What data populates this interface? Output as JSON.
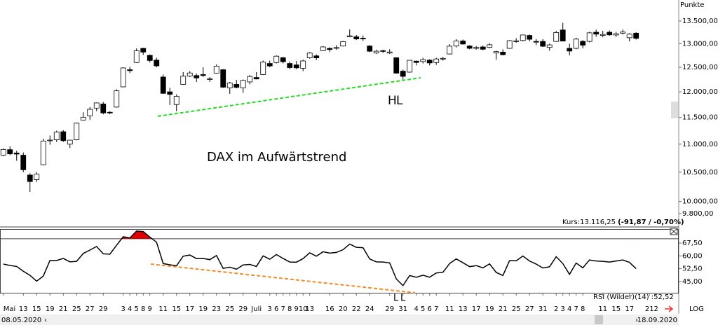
{
  "chart_data": [
    {
      "type": "candlestick",
      "axis_label": "Punkte",
      "annotation": "DAX im Aufwärtstrend",
      "markers": [
        "H",
        "L"
      ],
      "marker_colors": [
        "#1aa33a",
        "#000000"
      ],
      "quote": "Kurs:13.116,25",
      "quote_change": "(-91,87 / -0,70%)",
      "scale_label": "LOG",
      "log_scale": true,
      "up_color": "#ffffff",
      "down_color": "#000000",
      "ylim": [
        9608,
        13980
      ],
      "yticks": [
        {
          "value": 13500,
          "label": "13.500,00"
        },
        {
          "value": 13000,
          "label": "13.000,00"
        },
        {
          "value": 12500,
          "label": "12.500,00"
        },
        {
          "value": 12000,
          "label": "12.000,00"
        },
        {
          "value": 11500,
          "label": "11.500,00"
        },
        {
          "value": 11000,
          "label": "11.000,00"
        },
        {
          "value": 10500,
          "label": "10.500,00"
        },
        {
          "value": 10000,
          "label": "10.000,00"
        },
        {
          "value": 9800,
          "label": "9.800,00"
        }
      ],
      "open": [
        10800,
        10900,
        10840,
        10800,
        10450,
        10370,
        10630,
        11070,
        11080,
        11230,
        11000,
        11080,
        11450,
        11530,
        11680,
        11760,
        11600,
        11700,
        12100,
        12450,
        12600,
        12900,
        12750,
        12650,
        12300,
        12000,
        11750,
        12150,
        12320,
        12330,
        12350,
        12250,
        12380,
        12450,
        12080,
        12150,
        12080,
        12200,
        12290,
        12350,
        12580,
        12600,
        12700,
        12580,
        12550,
        12480,
        12700,
        12740,
        12850,
        12900,
        12900,
        12950,
        13150,
        13150,
        13120,
        12950,
        12800,
        12850,
        12800,
        12700,
        12420,
        12400,
        12630,
        12620,
        12650,
        12600,
        12680,
        12780,
        12950,
        13060,
        12950,
        12900,
        12930,
        12920,
        12800,
        12820,
        12900,
        13060,
        13070,
        13180,
        13050,
        13050,
        12920,
        13050,
        13300,
        12900,
        12900,
        13050,
        13050,
        13250,
        13180,
        13250,
        13190,
        13230,
        13130,
        13230
      ],
      "high": [
        10920,
        10960,
        10880,
        10850,
        10480,
        10500,
        11100,
        11160,
        11250,
        11260,
        11080,
        11400,
        11600,
        11700,
        11790,
        11800,
        11620,
        12050,
        12500,
        12510,
        12900,
        12910,
        12770,
        12700,
        12350,
        12080,
        11950,
        12400,
        12420,
        12370,
        12500,
        12300,
        12560,
        12460,
        12200,
        12240,
        12250,
        12340,
        12400,
        12640,
        12640,
        12750,
        12720,
        12620,
        12630,
        12660,
        12820,
        12770,
        12950,
        12920,
        12970,
        13060,
        13310,
        13190,
        13180,
        12970,
        12870,
        12870,
        12880,
        12710,
        12450,
        12650,
        12640,
        12700,
        12670,
        12700,
        12720,
        12990,
        13100,
        13090,
        12970,
        12950,
        12960,
        13010,
        12850,
        12880,
        13080,
        13120,
        13200,
        13200,
        13100,
        13100,
        13000,
        13280,
        13460,
        13000,
        13130,
        13080,
        13260,
        13310,
        13280,
        13290,
        13260,
        13310,
        13230,
        13250
      ],
      "low": [
        10780,
        10800,
        10700,
        10500,
        10160,
        10330,
        10620,
        10990,
        11040,
        11040,
        10930,
        11070,
        11440,
        11450,
        11620,
        11560,
        11560,
        11690,
        12090,
        12380,
        12590,
        12760,
        12600,
        12500,
        11960,
        11740,
        11620,
        12140,
        12300,
        12200,
        12300,
        12200,
        12370,
        12080,
        11960,
        12070,
        11980,
        12150,
        12250,
        12340,
        12500,
        12580,
        12580,
        12460,
        12460,
        12420,
        12680,
        12650,
        12840,
        12820,
        12870,
        12940,
        13140,
        13080,
        13060,
        12820,
        12780,
        12800,
        12780,
        12370,
        12250,
        12390,
        12540,
        12580,
        12540,
        12550,
        12640,
        12770,
        12920,
        12980,
        12880,
        12870,
        12860,
        12900,
        12660,
        12750,
        12890,
        13020,
        13050,
        13050,
        12970,
        12930,
        12850,
        13040,
        13050,
        12750,
        12880,
        12900,
        13030,
        13150,
        13140,
        13170,
        13150,
        13200,
        13050,
        13090
      ],
      "close": [
        10904,
        10824,
        10820,
        10542,
        10337,
        10465,
        11058,
        11075,
        11223,
        11065,
        11074,
        11391,
        11504,
        11657,
        11781,
        11587,
        11586,
        12021,
        12487,
        12431,
        12848,
        12820,
        12642,
        12530,
        11970,
        11949,
        11911,
        12316,
        12382,
        12281,
        12331,
        12262,
        12523,
        12093,
        12177,
        12089,
        12232,
        12311,
        12260,
        12608,
        12528,
        12733,
        12616,
        12494,
        12489,
        12633,
        12799,
        12697,
        12931,
        12875,
        12919,
        13046,
        13171,
        13104,
        13103,
        12838,
        12839,
        12835,
        12822,
        12379,
        12313,
        12647,
        12601,
        12660,
        12591,
        12674,
        12687,
        12947,
        13058,
        12993,
        12901,
        12920,
        12881,
        12977,
        12830,
        12764,
        13066,
        13062,
        13190,
        13096,
        13033,
        12945,
        12974,
        13243,
        13057,
        12842,
        13100,
        12968,
        13237,
        13209,
        13202,
        13193,
        13218,
        13255,
        13208,
        13116.25
      ]
    },
    {
      "type": "line",
      "label": "RSI (Wilder)(14) :52,52",
      "markers": [
        "L",
        "L"
      ],
      "marker_color": "#1a6fd0",
      "color": "#000000",
      "threshold": 70,
      "threshold_fill": "#e00000",
      "ylim": [
        38.4,
        75.7
      ],
      "yticks": [
        {
          "value": 67.5,
          "label": "67,50"
        },
        {
          "value": 60,
          "label": "60,00"
        },
        {
          "value": 52.5,
          "label": "52,50"
        },
        {
          "value": 45,
          "label": "45,00"
        }
      ],
      "values": [
        55.2,
        54.4,
        53.8,
        51,
        48.6,
        45.2,
        48.2,
        57.3,
        57.3,
        58.5,
        56.5,
        56.8,
        61.4,
        63.4,
        65.5,
        61.2,
        61,
        66.2,
        71.2,
        70.5,
        74.5,
        74.2,
        71,
        68,
        55.5,
        54.8,
        54.2,
        59.8,
        60.5,
        58.4,
        58.5,
        57.8,
        60.2,
        52.7,
        53.4,
        52.2,
        54.7,
        55,
        53.8,
        60,
        58,
        60.8,
        58.5,
        56.4,
        56.3,
        58.4,
        61.8,
        59.8,
        62.4,
        61.6,
        62,
        63.6,
        66.9,
        65,
        64.8,
        58.2,
        56.5,
        56.4,
        55.9,
        46.5,
        42.6,
        48.5,
        47.5,
        48.7,
        47.5,
        50,
        50.4,
        55.5,
        58.2,
        56,
        53.7,
        54.3,
        53,
        55.3,
        50.3,
        48.5,
        57.2,
        57.1,
        59.9,
        57,
        55.2,
        52.9,
        53.6,
        59.5,
        55.5,
        49.2,
        55.8,
        53,
        57.6,
        57,
        56.8,
        56.4,
        57,
        57.6,
        56.2,
        52.52
      ],
      "xlim": [
        -0.5,
        101.4
      ],
      "xticks": [
        {
          "value": 0,
          "label": "Mai"
        },
        {
          "value": 3,
          "label": "13"
        },
        {
          "value": 5,
          "label": "15"
        },
        {
          "value": 7,
          "label": "19"
        },
        {
          "value": 9,
          "label": "21"
        },
        {
          "value": 11,
          "label": "25"
        },
        {
          "value": 13,
          "label": "27"
        },
        {
          "value": 15,
          "label": "29"
        },
        {
          "value": 18,
          "label": "3"
        },
        {
          "value": 19,
          "label": "4"
        },
        {
          "value": 20,
          "label": "5"
        },
        {
          "value": 21,
          "label": "8"
        },
        {
          "value": 22,
          "label": "9"
        },
        {
          "value": 24,
          "label": "11"
        },
        {
          "value": 26,
          "label": "15"
        },
        {
          "value": 28,
          "label": "17"
        },
        {
          "value": 30,
          "label": "19"
        },
        {
          "value": 32,
          "label": "23"
        },
        {
          "value": 34,
          "label": "25"
        },
        {
          "value": 36,
          "label": "29"
        },
        {
          "value": 38,
          "label": "Juli"
        },
        {
          "value": 40,
          "label": "3"
        },
        {
          "value": 41,
          "label": "6"
        },
        {
          "value": 42,
          "label": "7"
        },
        {
          "value": 43,
          "label": "8"
        },
        {
          "value": 44,
          "label": "9"
        },
        {
          "value": 45,
          "label": "10"
        },
        {
          "value": 46,
          "label": "13"
        },
        {
          "value": 49,
          "label": "16"
        },
        {
          "value": 51,
          "label": "20"
        },
        {
          "value": 53,
          "label": "22"
        },
        {
          "value": 55,
          "label": "24"
        },
        {
          "value": 58,
          "label": "29"
        },
        {
          "value": 60,
          "label": "31"
        },
        {
          "value": 62,
          "label": "4"
        },
        {
          "value": 63,
          "label": "5"
        },
        {
          "value": 64,
          "label": "6"
        },
        {
          "value": 65,
          "label": "7"
        },
        {
          "value": 67,
          "label": "11"
        },
        {
          "value": 69,
          "label": "13"
        },
        {
          "value": 71,
          "label": "17"
        },
        {
          "value": 73,
          "label": "19"
        },
        {
          "value": 75,
          "label": "21"
        },
        {
          "value": 77,
          "label": "25"
        },
        {
          "value": 79,
          "label": "27"
        },
        {
          "value": 81,
          "label": "31"
        },
        {
          "value": 83,
          "label": "2"
        },
        {
          "value": 84,
          "label": "3"
        },
        {
          "value": 85,
          "label": "4"
        },
        {
          "value": 86,
          "label": "7"
        },
        {
          "value": 87,
          "label": "8"
        },
        {
          "value": 90,
          "label": "11"
        },
        {
          "value": 92,
          "label": "15"
        },
        {
          "value": 94,
          "label": "17"
        },
        {
          "value": 97,
          "label": "21"
        },
        {
          "value": 98,
          "label": "2"
        }
      ],
      "range_start": "08.05.2020",
      "range_end": "18.09.2020"
    }
  ]
}
